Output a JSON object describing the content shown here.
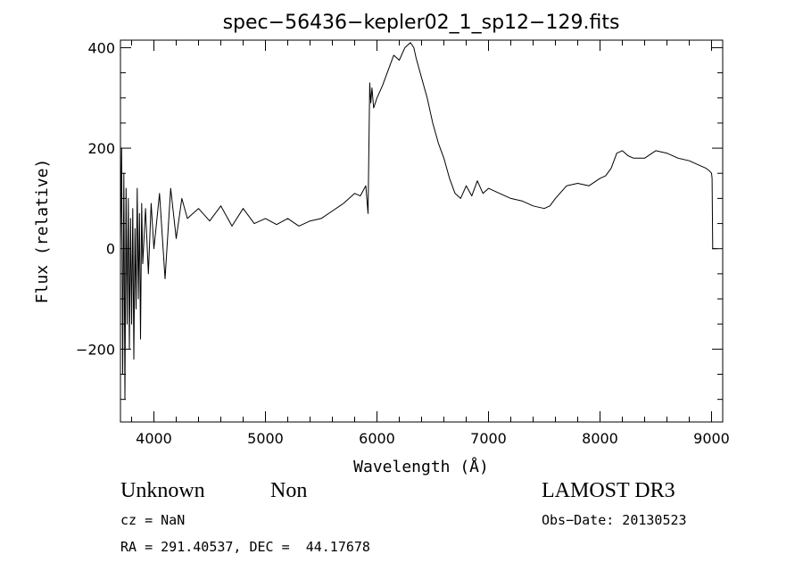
{
  "chart_data": {
    "type": "line",
    "title": "spec−56436−kepler02_1_sp12−129.fits",
    "xlabel": "Wavelength (Å)",
    "ylabel": "Flux (relative)",
    "xlim": [
      3700,
      9100
    ],
    "ylim": [
      -345,
      415
    ],
    "x_ticks": [
      4000,
      5000,
      6000,
      7000,
      8000,
      9000
    ],
    "y_ticks": [
      -200,
      0,
      200,
      400
    ],
    "y_tick_labels": [
      "−200",
      "0",
      "200",
      "400"
    ],
    "grid": false,
    "series": [
      {
        "x": [
          3700,
          3710,
          3720,
          3730,
          3740,
          3750,
          3760,
          3770,
          3780,
          3790,
          3800,
          3810,
          3820,
          3830,
          3840,
          3850,
          3860,
          3870,
          3880,
          3890,
          3900,
          3925,
          3950,
          3975,
          4000,
          4050,
          4100,
          4150,
          4200,
          4250,
          4300,
          4400,
          4500,
          4600,
          4700,
          4800,
          4900,
          5000,
          5100,
          5200,
          5300,
          5400,
          5500,
          5600,
          5700,
          5800,
          5850,
          5900,
          5920,
          5935,
          5945,
          5955,
          5970,
          6000,
          6050,
          6100,
          6150,
          6200,
          6250,
          6300,
          6330,
          6350,
          6400,
          6450,
          6500,
          6550,
          6600,
          6650,
          6700,
          6750,
          6800,
          6850,
          6900,
          6950,
          7000,
          7100,
          7200,
          7300,
          7400,
          7500,
          7550,
          7600,
          7700,
          7800,
          7900,
          8000,
          8050,
          8100,
          8150,
          8200,
          8250,
          8300,
          8400,
          8500,
          8600,
          8700,
          8800,
          8900,
          8950,
          8980,
          9000,
          9005,
          9010,
          9020,
          9050
        ],
        "y": [
          0,
          200,
          -250,
          150,
          -300,
          120,
          -150,
          100,
          -200,
          60,
          -150,
          80,
          -220,
          40,
          -120,
          120,
          -100,
          70,
          -180,
          90,
          -30,
          80,
          -50,
          90,
          0,
          110,
          -60,
          120,
          20,
          100,
          60,
          80,
          55,
          85,
          45,
          80,
          50,
          60,
          48,
          60,
          45,
          55,
          60,
          75,
          90,
          110,
          105,
          125,
          70,
          330,
          290,
          320,
          280,
          300,
          325,
          355,
          385,
          375,
          400,
          410,
          400,
          380,
          340,
          300,
          250,
          210,
          180,
          140,
          110,
          100,
          125,
          105,
          135,
          110,
          120,
          110,
          100,
          95,
          85,
          80,
          85,
          100,
          125,
          130,
          125,
          140,
          145,
          160,
          190,
          195,
          185,
          180,
          180,
          195,
          190,
          180,
          175,
          165,
          160,
          155,
          150,
          140,
          0,
          0,
          0
        ]
      }
    ]
  },
  "annotations": {
    "object_class": "Unknown",
    "subclass": "Non",
    "survey": "LAMOST DR3",
    "redshift": "cz = NaN",
    "obs_date": "Obs−Date: 20130523",
    "coords": "RA = 291.40537, DEC =  44.17678"
  }
}
